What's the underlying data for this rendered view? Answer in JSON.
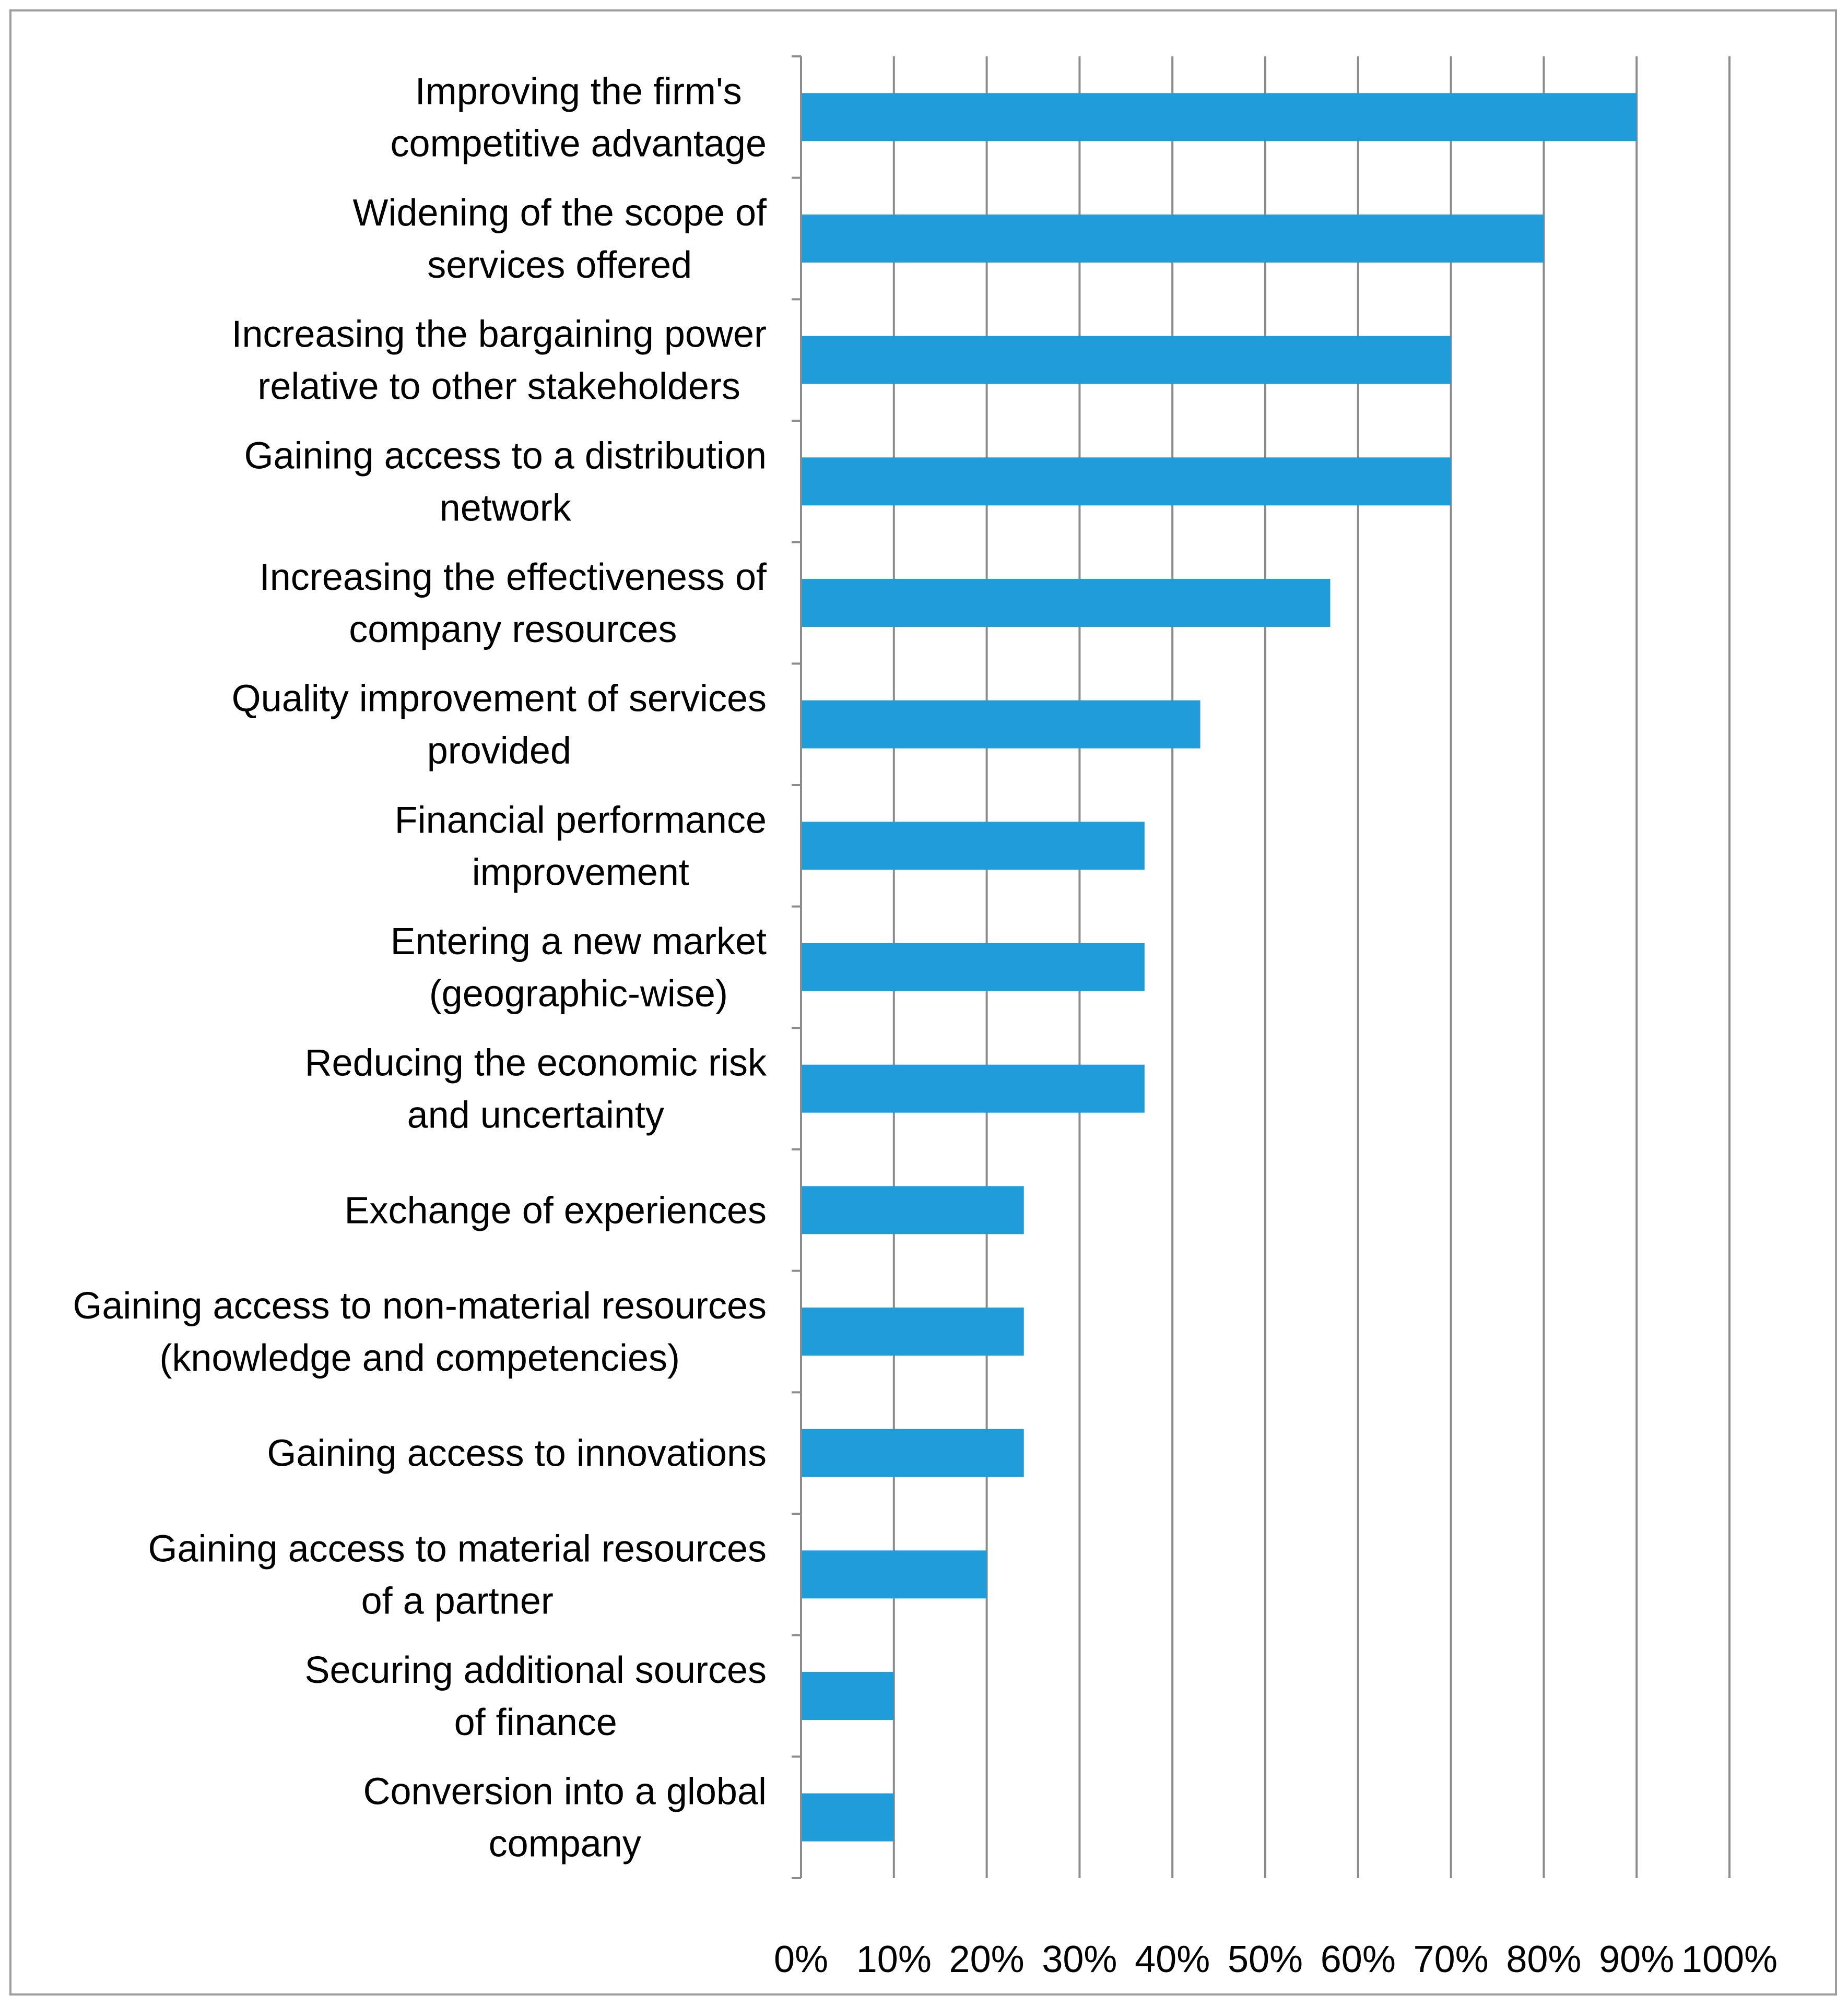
{
  "chart_data": {
    "type": "bar",
    "orientation": "horizontal",
    "title": "",
    "xlabel": "",
    "ylabel": "",
    "xlim": [
      0,
      100
    ],
    "grid": true,
    "legend": "none",
    "bar_color": "#1f9cda",
    "gridline_color": "#8c8c8c",
    "frame_color": "#9e9e9e",
    "x_ticks": [
      "0%",
      "10%",
      "20%",
      "30%",
      "40%",
      "50%",
      "60%",
      "70%",
      "80%",
      "90%",
      "100%"
    ],
    "categories": [
      [
        "Improving the firm's",
        "competitive advantage"
      ],
      [
        "Widening of the scope of",
        "services offered"
      ],
      [
        "Increasing the bargaining power",
        "relative to other stakeholders"
      ],
      [
        "Gaining access to a distribution",
        "network"
      ],
      [
        "Increasing the effectiveness of",
        "company resources"
      ],
      [
        "Quality improvement of services",
        "provided"
      ],
      [
        "Financial performance",
        "improvement"
      ],
      [
        "Entering a new market",
        "(geographic-wise)"
      ],
      [
        "Reducing the economic risk",
        "and uncertainty"
      ],
      [
        "Exchange of experiences"
      ],
      [
        "Gaining access to non-material resources",
        "(knowledge and competencies)"
      ],
      [
        "Gaining access to innovations"
      ],
      [
        "Gaining access to material resources",
        "of a partner"
      ],
      [
        "Securing additional sources",
        "of finance"
      ],
      [
        "Conversion into a global",
        "company"
      ]
    ],
    "values": [
      90,
      80,
      70,
      70,
      57,
      43,
      37,
      37,
      37,
      24,
      24,
      24,
      20,
      10,
      10
    ]
  }
}
